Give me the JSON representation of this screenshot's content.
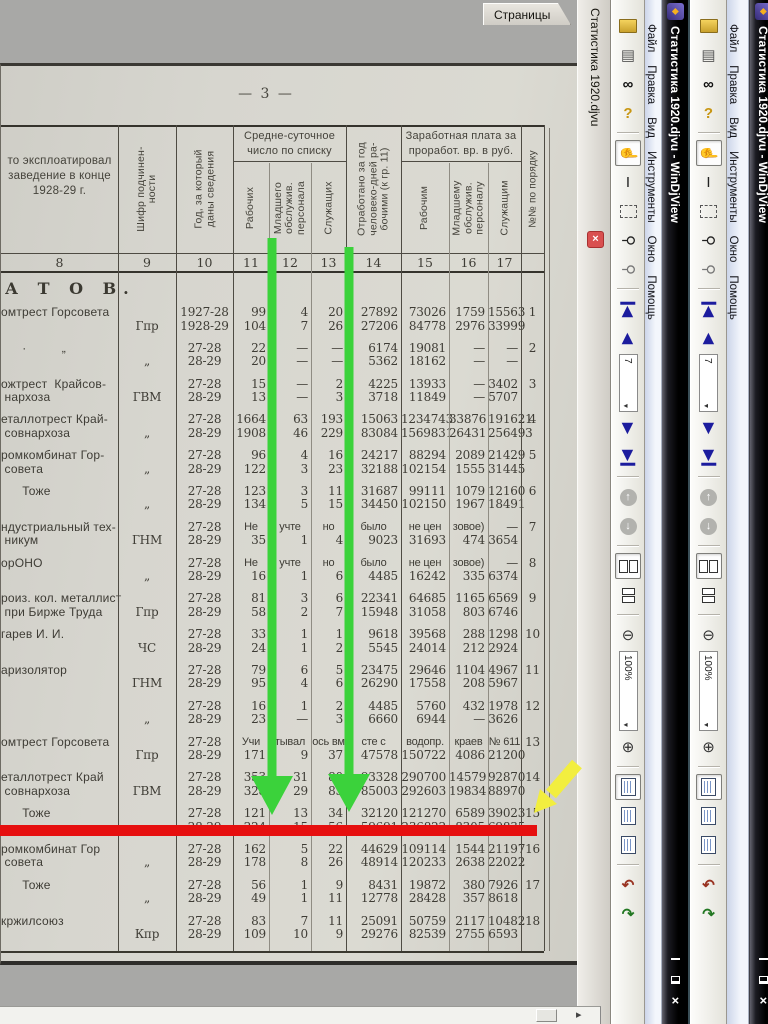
{
  "window": {
    "title": "Статистика 1920.djvu - WinDjView",
    "tab_title": "Статистика 1920.djvu",
    "pages_tab": "Страницы",
    "menu": [
      "Файл",
      "Правка",
      "Вид",
      "Инструменты",
      "Окно",
      "Помощь"
    ],
    "page_spin": "7",
    "zoom_value": "100%",
    "caption": [
      "minimize",
      "restore",
      "close"
    ],
    "tab_close_glyph": "×"
  },
  "toolbar": [
    {
      "n": "open-file-button",
      "k": "folder"
    },
    {
      "n": "print-button",
      "k": "i",
      "g": "▤",
      "c": "#555555"
    },
    {
      "n": "find-button",
      "k": "i",
      "g": "∞",
      "c": "#111111",
      "b": 1
    },
    {
      "n": "help-button",
      "k": "i",
      "g": "?",
      "c": "#c89612",
      "b": 1
    },
    {
      "k": "sep"
    },
    {
      "n": "pan-tool-button",
      "k": "i",
      "g": "☝",
      "c": "#333333",
      "p": 1,
      "r": 1
    },
    {
      "n": "select-text-button",
      "k": "i",
      "g": "I",
      "c": "#222222"
    },
    {
      "n": "select-area-button",
      "k": "rect"
    },
    {
      "n": "zoom-tool-button",
      "k": "i",
      "g": "⚲",
      "c": "#222222",
      "r": 1
    },
    {
      "n": "zoom-area-button",
      "k": "i",
      "g": "⚲",
      "c": "#777777",
      "r": 1
    },
    {
      "k": "sep"
    },
    {
      "n": "first-page-button",
      "k": "i",
      "g": "◀",
      "c": "#1c1c9e",
      "r": 1,
      "bar": "L"
    },
    {
      "n": "prev-page-button",
      "k": "i",
      "g": "◀",
      "c": "#1c1c9e",
      "r": 1
    },
    {
      "n": "page-number-box",
      "k": "spin",
      "bind": "window.page_spin",
      "h": 58
    },
    {
      "n": "next-page-button",
      "k": "i",
      "g": "▶",
      "c": "#1c1c9e",
      "r": 1
    },
    {
      "n": "last-page-button",
      "k": "i",
      "g": "▶",
      "c": "#1c1c9e",
      "r": 1,
      "bar": "R"
    },
    {
      "k": "sep"
    },
    {
      "n": "back-button",
      "k": "circ",
      "g": "↑"
    },
    {
      "n": "forward-button",
      "k": "circ",
      "g": "↓"
    },
    {
      "k": "sep"
    },
    {
      "n": "facing-pages-button",
      "k": "facing",
      "p": 1
    },
    {
      "n": "continuous-layout-button",
      "k": "cont"
    },
    {
      "k": "sep"
    },
    {
      "n": "zoom-out-button",
      "k": "i",
      "g": "⊖",
      "c": "#333333"
    },
    {
      "n": "zoom-combo-box",
      "k": "spin",
      "bind": "window.zoom_value",
      "h": 80
    },
    {
      "n": "zoom-in-button",
      "k": "i",
      "g": "⊕",
      "c": "#333333"
    },
    {
      "k": "sep"
    },
    {
      "n": "fit-width-button",
      "k": "page",
      "p": 1
    },
    {
      "n": "fit-page-button",
      "k": "page"
    },
    {
      "n": "actual-size-button",
      "k": "page"
    },
    {
      "k": "sep"
    },
    {
      "n": "rotate-left-button",
      "k": "i",
      "g": "↶",
      "c": "#993322",
      "b": 1
    },
    {
      "n": "rotate-right-button",
      "k": "i",
      "g": "↷",
      "c": "#227722",
      "b": 1
    }
  ],
  "document": {
    "page_number": "— 3 —",
    "section_heading": "А Т О В.",
    "header": {
      "col8": [
        "то эксплоатировал",
        "заведение в конце",
        "1928-29 г."
      ],
      "col9": [
        "Шифр подчинен-",
        "ности"
      ],
      "col10": [
        "Год, за который",
        "даны сведения"
      ],
      "group1": [
        "Средне-суточное",
        "число по списку"
      ],
      "col11": "Рабочих",
      "col12": [
        "Младшего",
        "обслужив.",
        "персонала"
      ],
      "col13": "Служащих",
      "col14": [
        "Отработано за год",
        "человеко-дней ра-",
        "бочими (к гр. 11)"
      ],
      "group2": [
        "Заработная плата за",
        "проработ. вр. в руб."
      ],
      "col15": "Рабочим",
      "col16": [
        "Младшему",
        "обслужив.",
        "персоналу"
      ],
      "col17": "Служащим",
      "colnum": "№№ по порядку",
      "numbers": [
        "8",
        "9",
        "10",
        "11",
        "12",
        "13",
        "14",
        "15",
        "16",
        "17",
        ""
      ]
    },
    "rows": [
      {
        "label": [
          "омтрест Горсовета",
          ""
        ],
        "code": "Гпр",
        "years": [
          "1927-28",
          "1928-29"
        ],
        "v1": [
          "99",
          "4",
          "20",
          "27892",
          "73026",
          "1759",
          "15563"
        ],
        "v2": [
          "104",
          "7",
          "26",
          "27206",
          "84778",
          "2976",
          "33999"
        ],
        "num": "1"
      },
      {
        "label": [
          "      ·          „",
          ""
        ],
        "code": "„",
        "years": [
          "27-28",
          "28-29"
        ],
        "v1": [
          "22",
          "—",
          "—",
          "6174",
          "19081",
          "—",
          "—"
        ],
        "v2": [
          "20",
          "—",
          "—",
          "5362",
          "18162",
          "—",
          "—"
        ],
        "num": "2"
      },
      {
        "label": [
          "ожтрест  Крайсов-",
          " нархоза"
        ],
        "code": "ГВМ",
        "years": [
          "27-28",
          "28-29"
        ],
        "v1": [
          "15",
          "—",
          "2",
          "4225",
          "13933",
          "—",
          "3402"
        ],
        "v2": [
          "13",
          "—",
          "3",
          "3718",
          "11849",
          "—",
          "5707"
        ],
        "num": "3"
      },
      {
        "label": [
          "еталлотрест Край-",
          " совнархоза"
        ],
        "code": "„",
        "years": [
          "27-28",
          "28-29"
        ],
        "v1": [
          "1664",
          "63",
          "193",
          "15063",
          "1234743",
          "33876",
          "191621"
        ],
        "v2": [
          "1908",
          "46",
          "229",
          "83084",
          "1569831",
          "26431",
          "256493"
        ],
        "num": "4"
      },
      {
        "label": [
          "ромкомбинат Гор-",
          " совета"
        ],
        "code": "„",
        "years": [
          "27-28",
          "28-29"
        ],
        "v1": [
          "96",
          "4",
          "16",
          "24217",
          "88294",
          "2089",
          "21429"
        ],
        "v2": [
          "122",
          "3",
          "23",
          "32188",
          "102154",
          "1555",
          "31445"
        ],
        "num": "5"
      },
      {
        "label": [
          "      Тоже",
          ""
        ],
        "code": "„",
        "years": [
          "27-28",
          "28-29"
        ],
        "v1": [
          "123",
          "3",
          "11",
          "31687",
          "99111",
          "1079",
          "12160"
        ],
        "v2": [
          "134",
          "5",
          "15",
          "34450",
          "102150",
          "1967",
          "18491"
        ],
        "num": "6"
      },
      {
        "label": [
          "ндустриальный тех-",
          " никум"
        ],
        "code": "ГНМ",
        "years": [
          "27-28",
          "28-29"
        ],
        "v1": [
          "Не",
          "учте",
          "но",
          "было",
          "не цен",
          "зовое)",
          "—"
        ],
        "v2": [
          "35",
          "1",
          "4",
          "9023",
          "31693",
          "474",
          "3654"
        ],
        "num": "7"
      },
      {
        "label": [
          "орОНО",
          ""
        ],
        "code": "„",
        "years": [
          "27-28",
          "28-29"
        ],
        "v1": [
          "Не",
          "учте",
          "но",
          "было",
          "не цен",
          "зовое)",
          "—"
        ],
        "v2": [
          "16",
          "1",
          "6",
          "4485",
          "16242",
          "335",
          "6374"
        ],
        "num": "8"
      },
      {
        "label": [
          "роиз. кол. металлист",
          " при Бирже Труда"
        ],
        "code": "Гпр",
        "years": [
          "27-28",
          "28-29"
        ],
        "v1": [
          "81",
          "3",
          "6",
          "22341",
          "64685",
          "1165",
          "6569"
        ],
        "v2": [
          "58",
          "2",
          "7",
          "15948",
          "31058",
          "803",
          "6746"
        ],
        "num": "9"
      },
      {
        "label": [
          "гарев И. И.",
          ""
        ],
        "code": "ЧС",
        "years": [
          "27-28",
          "28-29"
        ],
        "v1": [
          "33",
          "1",
          "1",
          "9618",
          "39568",
          "288",
          "1298"
        ],
        "v2": [
          "24",
          "1",
          "2",
          "5545",
          "24014",
          "212",
          "2924"
        ],
        "num": "10"
      },
      {
        "label": [
          "аризолятор",
          ""
        ],
        "code": "ГНМ",
        "years": [
          "27-28",
          "28-29"
        ],
        "v1": [
          "79",
          "6",
          "5",
          "23475",
          "29646",
          "1104",
          "4967"
        ],
        "v2": [
          "95",
          "4",
          "6",
          "26290",
          "17558",
          "208",
          "5967"
        ],
        "num": "11"
      },
      {
        "label": [
          "",
          ""
        ],
        "code": "„",
        "years": [
          "27-28",
          "28-29"
        ],
        "v1": [
          "16",
          "1",
          "2",
          "4485",
          "5760",
          "432",
          "1978"
        ],
        "v2": [
          "23",
          "—",
          "3",
          "6660",
          "6944",
          "—",
          "3626"
        ],
        "num": "12"
      },
      {
        "label": [
          "омтрест Горсовета",
          ""
        ],
        "code": "Гпр",
        "years": [
          "27-28",
          "28-29"
        ],
        "v1": [
          "Учи",
          "тывал",
          "ось вм",
          "сте с",
          "водопр.",
          "краев",
          "№ 611"
        ],
        "v2": [
          "171",
          "9",
          "37",
          "47578",
          "150722",
          "4086",
          "21200"
        ],
        "num": "13"
      },
      {
        "label": [
          "еталлотрест Край",
          " совнархоза"
        ],
        "code": "ГВМ",
        "years": [
          "27-28",
          "28-29"
        ],
        "v1": [
          "353",
          "31",
          "80",
          "93328",
          "290700",
          "14579",
          "92870"
        ],
        "v2": [
          "328",
          "29",
          "85",
          "85003",
          "292603",
          "19834",
          "88970"
        ],
        "num": "14"
      },
      {
        "label": [
          "      Тоже",
          ""
        ],
        "code": "„",
        "years": [
          "27-28",
          "28-29"
        ],
        "v1": [
          "121",
          "13",
          "34",
          "32120",
          "121270",
          "6589",
          "39023"
        ],
        "v2": [
          "224",
          "15",
          "56",
          "59691",
          "236822",
          "8305",
          "69835"
        ],
        "num": "15"
      },
      {
        "label": [
          "ромкомбинат Гор",
          " совета"
        ],
        "code": "„",
        "years": [
          "27-28",
          "28-29"
        ],
        "v1": [
          "162",
          "5",
          "22",
          "44629",
          "109114",
          "1544",
          "21197"
        ],
        "v2": [
          "178",
          "8",
          "26",
          "48914",
          "120233",
          "2638",
          "22022"
        ],
        "num": "16"
      },
      {
        "label": [
          "      Тоже",
          ""
        ],
        "code": "„",
        "years": [
          "27-28",
          "28-29"
        ],
        "v1": [
          "56",
          "1",
          "9",
          "8431",
          "19872",
          "380",
          "7926"
        ],
        "v2": [
          "49",
          "1",
          "11",
          "12778",
          "28428",
          "357",
          "8618"
        ],
        "num": "17"
      },
      {
        "label": [
          "кржилсоюз",
          ""
        ],
        "code": "Кпр",
        "years": [
          "27-28",
          "28-29"
        ],
        "v1": [
          "83",
          "7",
          "11",
          "25091",
          "50759",
          "2117",
          "10482"
        ],
        "v2": [
          "109",
          "10",
          "9",
          "29276",
          "82539",
          "2755",
          "6593"
        ],
        "num": "18"
      }
    ]
  },
  "annotations": {
    "green_arrow_color": "#3bd23b",
    "red_line_color": "#e60f0f",
    "yellow_arrow_color": "#f2ee3f"
  }
}
